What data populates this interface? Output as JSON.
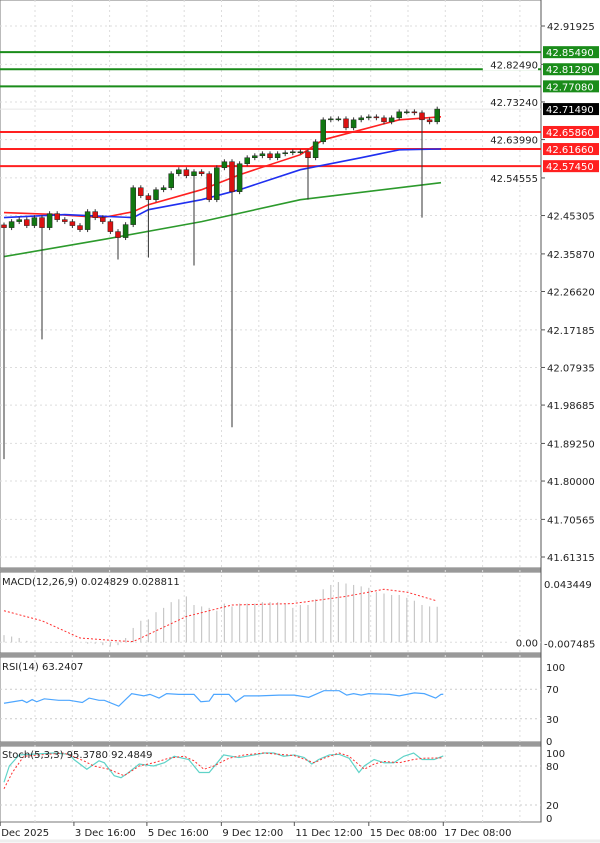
{
  "chart_data": {
    "type": "candlestick",
    "price_axis": {
      "ticks": [
        "42.91925",
        "42.82490",
        "42.73240",
        "42.63990",
        "42.54555",
        "42.45305",
        "42.35870",
        "42.26620",
        "42.17185",
        "42.07935",
        "41.98685",
        "41.89250",
        "41.80000",
        "41.70565",
        "41.61315"
      ],
      "range": [
        41.61315,
        42.91925
      ]
    },
    "time_axis": {
      "labels": [
        "Dec 2025",
        "3 Dec 16:00",
        "5 Dec 16:00",
        "9 Dec 12:00",
        "11 Dec 12:00",
        "15 Dec 08:00",
        "17 Dec 08:00"
      ],
      "label_candle_index": [
        -0.5,
        9.2,
        18.8,
        28.6,
        38.2,
        48,
        57.8
      ]
    },
    "grid": true,
    "current_price": {
      "value": "42.71490",
      "color": "#000000"
    },
    "resistance_levels": {
      "color": "#1a8c1a",
      "values": [
        "42.85490",
        "42.81290",
        "42.77080"
      ]
    },
    "support_levels": {
      "color": "#ff2020",
      "values": [
        "42.65860",
        "42.61660",
        "42.57450"
      ]
    },
    "colors": {
      "bull": "#117711",
      "bear": "#dd1111",
      "wick": "#333333",
      "ma_fast": "#ff2020",
      "ma_mid": "#1f2ff0",
      "ma_slow": "#2c9a2c"
    },
    "candles": {
      "first_open": 42.43,
      "close": [
        42.4233,
        42.4381,
        42.443,
        42.4283,
        42.4479,
        42.4233,
        42.4577,
        42.443,
        42.4381,
        42.4283,
        42.4184,
        42.4626,
        42.4479,
        42.4381,
        42.4135,
        42.3988,
        42.4307,
        42.5215,
        42.5019,
        42.4921,
        42.5166,
        42.5215,
        42.5559,
        42.5657,
        42.551,
        42.5608,
        42.5559,
        42.4921,
        42.5706,
        42.5854,
        42.5117,
        42.5805,
        42.5952,
        42.6001,
        42.605,
        42.5952,
        42.605,
        42.6075,
        42.6099,
        42.6099,
        42.5952,
        42.6345,
        42.6885,
        42.6909,
        42.6909,
        42.6688,
        42.6885,
        42.6934,
        42.6958,
        42.6934,
        42.6836,
        42.6934,
        42.7081,
        42.7081,
        42.7057,
        42.6885,
        42.6836,
        42.7149
      ],
      "long_wick_lows": [
        [
          0,
          41.8538
        ],
        [
          5,
          42.1484
        ],
        [
          15,
          42.3448
        ],
        [
          19,
          42.3497
        ],
        [
          25,
          42.33
        ],
        [
          30,
          41.9323
        ],
        [
          40,
          42.4921
        ],
        [
          55,
          42.4479
        ]
      ]
    },
    "moving_averages": [
      {
        "color": "#ff2020",
        "points": [
          [
            0,
            42.4602
          ],
          [
            7,
            42.4553
          ],
          [
            13,
            42.4479
          ],
          [
            17,
            42.4626
          ],
          [
            19,
            42.4798
          ],
          [
            26,
            42.5166
          ],
          [
            31,
            42.5535
          ],
          [
            39,
            42.6026
          ],
          [
            42,
            42.6394
          ],
          [
            47,
            42.6639
          ],
          [
            52,
            42.6885
          ],
          [
            57.5,
            42.6958
          ]
        ]
      },
      {
        "color": "#1f2ff0",
        "points": [
          [
            0,
            42.4479
          ],
          [
            8,
            42.4553
          ],
          [
            17,
            42.4479
          ],
          [
            19,
            42.4675
          ],
          [
            26,
            42.4921
          ],
          [
            31,
            42.5166
          ],
          [
            39,
            42.5657
          ],
          [
            47,
            42.5952
          ],
          [
            52,
            42.6148
          ],
          [
            57.5,
            42.6166
          ]
        ]
      },
      {
        "color": "#2c9a2c",
        "points": [
          [
            0,
            42.3521
          ],
          [
            13,
            42.3939
          ],
          [
            26,
            42.4381
          ],
          [
            39,
            42.4921
          ],
          [
            57.5,
            42.5338
          ]
        ]
      }
    ],
    "macd": {
      "label": "MACD(12,26,9) 0.024829 0.028811",
      "axis_ticks": [
        "0.043449",
        "0.00",
        "-0.007485"
      ],
      "range": [
        -0.007485,
        0.043449
      ],
      "histogram": [
        0.005,
        0.004,
        0.003,
        0.001,
        0.0005,
        0,
        0,
        -0.0005,
        0,
        0.0005,
        0,
        -0.001,
        -0.001,
        -0.002,
        -0.003,
        -0.002,
        0.003,
        0.01,
        0.015,
        0.016,
        0.021,
        0.024,
        0.028,
        0.03,
        0.032,
        0.026,
        0.025,
        0.024,
        0.022,
        0.027,
        0.025,
        0.027,
        0.027,
        0.027,
        0.028,
        0.028,
        0.028,
        0.027,
        0.024,
        0.026,
        0.026,
        0.03,
        0.037,
        0.04,
        0.042,
        0.041,
        0.04,
        0.039,
        0.038,
        0.035,
        0.034,
        0.033,
        0.033,
        0.031,
        0.029,
        0.026,
        0.025,
        0.0248
      ],
      "signal": [
        [
          0,
          0.022
        ],
        [
          5,
          0.015
        ],
        [
          10,
          0.003
        ],
        [
          15,
          0.001
        ],
        [
          17,
          0.0005
        ],
        [
          20,
          0.008
        ],
        [
          24,
          0.018
        ],
        [
          30,
          0.026
        ],
        [
          38,
          0.027
        ],
        [
          45,
          0.032
        ],
        [
          50,
          0.037
        ],
        [
          53,
          0.035
        ],
        [
          57,
          0.0288
        ]
      ],
      "histogram_color": "#c8c8c8",
      "signal_color": "#ff3030"
    },
    "rsi": {
      "label": "RSI(14) 63.2407",
      "axis_ticks": [
        "100",
        "70",
        "30",
        "0"
      ],
      "levels": [
        70,
        30
      ],
      "color": "#4da6ff",
      "points": [
        [
          0,
          51
        ],
        [
          2.4,
          55
        ],
        [
          3,
          52
        ],
        [
          3.7,
          56
        ],
        [
          4.3,
          53
        ],
        [
          5.3,
          57
        ],
        [
          7.2,
          55
        ],
        [
          8.6,
          55
        ],
        [
          10.3,
          52
        ],
        [
          11.2,
          58
        ],
        [
          12.5,
          55
        ],
        [
          13.2,
          55
        ],
        [
          15.1,
          47
        ],
        [
          16.8,
          64
        ],
        [
          18.4,
          61
        ],
        [
          19.2,
          63
        ],
        [
          20.4,
          58
        ],
        [
          21.4,
          64
        ],
        [
          23,
          63
        ],
        [
          25,
          63
        ],
        [
          25.9,
          53
        ],
        [
          27,
          54
        ],
        [
          27.6,
          63
        ],
        [
          29.6,
          63
        ],
        [
          30.5,
          53
        ],
        [
          31.6,
          61
        ],
        [
          33.6,
          61
        ],
        [
          36.2,
          62
        ],
        [
          38.2,
          62
        ],
        [
          40.1,
          59
        ],
        [
          42.1,
          68
        ],
        [
          44.1,
          68
        ],
        [
          45.1,
          62
        ],
        [
          46,
          64
        ],
        [
          47,
          62
        ],
        [
          48,
          64
        ],
        [
          50.7,
          63
        ],
        [
          52,
          61
        ],
        [
          54,
          65
        ],
        [
          55.3,
          64
        ],
        [
          56.8,
          58
        ],
        [
          57.5,
          63
        ],
        [
          57.8,
          63.2
        ]
      ]
    },
    "stochastic": {
      "label": "Stoch(5,3,3) 95.3780 92.4849",
      "axis_ticks": [
        "100",
        "80",
        "20",
        "0"
      ],
      "levels": [
        80,
        20
      ],
      "main_color": "#5fd3c8",
      "signal_color": "#ff3030",
      "main": [
        [
          0,
          55
        ],
        [
          0.7,
          80
        ],
        [
          2,
          97
        ],
        [
          6.6,
          100
        ],
        [
          8.6,
          98
        ],
        [
          9.2,
          90
        ],
        [
          10.9,
          75
        ],
        [
          12.5,
          88
        ],
        [
          13.2,
          85
        ],
        [
          14.5,
          65
        ],
        [
          15.4,
          62
        ],
        [
          16.4,
          70
        ],
        [
          17.8,
          83
        ],
        [
          18.4,
          82
        ],
        [
          19.7,
          80
        ],
        [
          21.1,
          85
        ],
        [
          22.4,
          95
        ],
        [
          24.3,
          90
        ],
        [
          25.7,
          70
        ],
        [
          27,
          70
        ],
        [
          28.9,
          97
        ],
        [
          30.9,
          93
        ],
        [
          32.9,
          97
        ],
        [
          34.2,
          100
        ],
        [
          35.5,
          100
        ],
        [
          36.8,
          95
        ],
        [
          38.2,
          97
        ],
        [
          39.5,
          93
        ],
        [
          40.5,
          83
        ],
        [
          41.4,
          90
        ],
        [
          42.8,
          97
        ],
        [
          44.1,
          98
        ],
        [
          45.4,
          92
        ],
        [
          46.7,
          70
        ],
        [
          47.4,
          80
        ],
        [
          48.7,
          90
        ],
        [
          50,
          85
        ],
        [
          51.3,
          85
        ],
        [
          52.6,
          95
        ],
        [
          53.9,
          100
        ],
        [
          55,
          90
        ],
        [
          56.6,
          90
        ],
        [
          57.8,
          95.4
        ]
      ],
      "signal": [
        [
          0,
          45
        ],
        [
          1.1,
          70
        ],
        [
          2.6,
          95
        ],
        [
          7.9,
          100
        ],
        [
          10.5,
          88
        ],
        [
          11.8,
          80
        ],
        [
          13.8,
          75
        ],
        [
          15.8,
          65
        ],
        [
          17.8,
          80
        ],
        [
          19.7,
          85
        ],
        [
          21.7,
          92
        ],
        [
          23.7,
          95
        ],
        [
          25,
          88
        ],
        [
          26.3,
          75
        ],
        [
          27.6,
          80
        ],
        [
          29.6,
          92
        ],
        [
          31.6,
          97
        ],
        [
          34.2,
          100
        ],
        [
          36.2,
          98
        ],
        [
          38.2,
          96
        ],
        [
          40.8,
          85
        ],
        [
          42.1,
          92
        ],
        [
          44.1,
          100
        ],
        [
          45.4,
          95
        ],
        [
          47.4,
          75
        ],
        [
          48.7,
          83
        ],
        [
          50,
          87
        ],
        [
          52,
          85
        ],
        [
          53.9,
          90
        ],
        [
          55.3,
          92
        ],
        [
          57.8,
          92.5
        ]
      ]
    }
  }
}
